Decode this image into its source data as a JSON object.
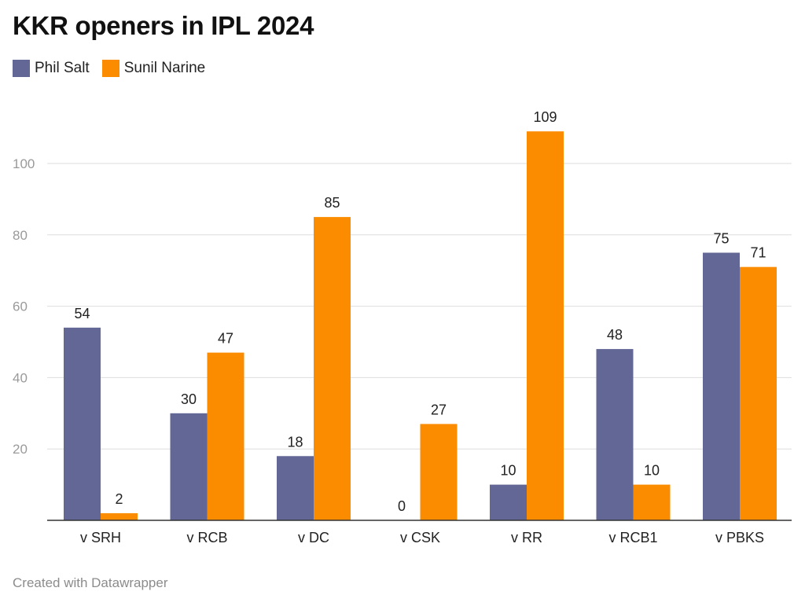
{
  "chart_data": {
    "type": "bar",
    "title": "KKR openers in IPL 2024",
    "categories": [
      "v SRH",
      "v RCB",
      "v DC",
      "v CSK",
      "v RR",
      "v RCB1",
      "v PBKS"
    ],
    "series": [
      {
        "name": "Phil Salt",
        "color": "#636796",
        "values": [
          54,
          30,
          18,
          0,
          10,
          48,
          75
        ]
      },
      {
        "name": "Sunil Narine",
        "color": "#fb8c00",
        "values": [
          2,
          47,
          85,
          27,
          109,
          10,
          71
        ]
      }
    ],
    "yticks": [
      20,
      40,
      60,
      80,
      100
    ],
    "ylim": [
      0,
      110
    ],
    "grid": true,
    "legend_position": "top-left",
    "xlabel": "",
    "ylabel": ""
  },
  "footer": "Created with Datawrapper"
}
